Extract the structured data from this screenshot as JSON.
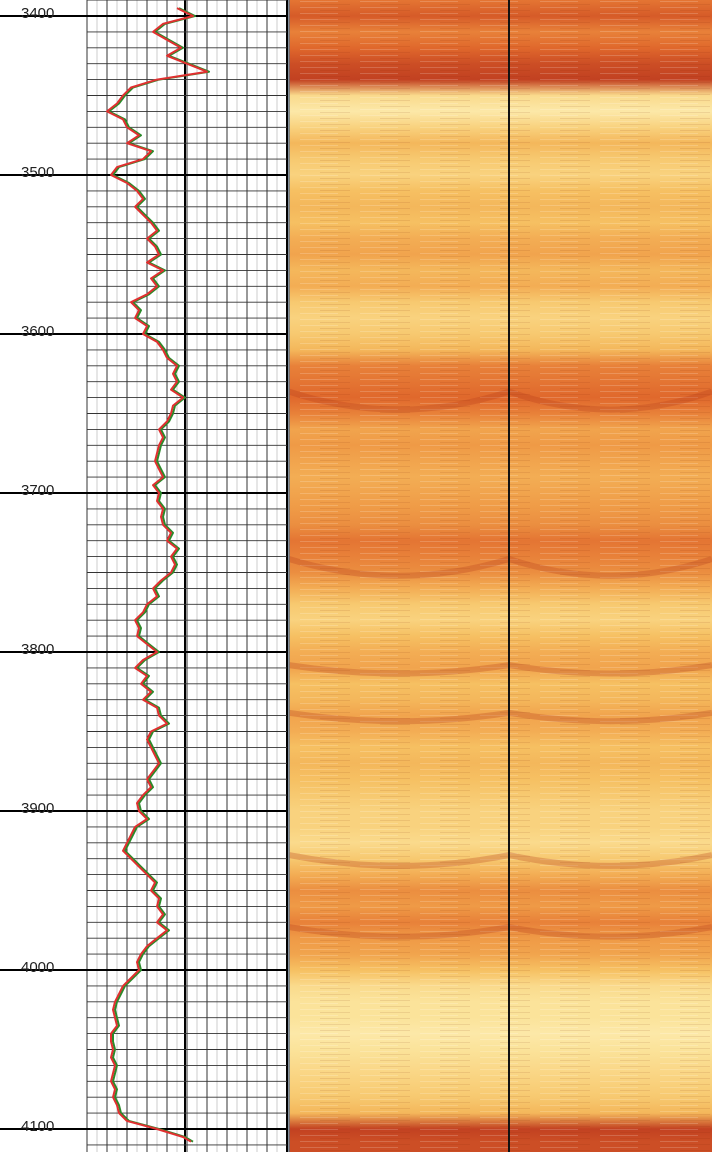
{
  "chart_data": {
    "type": "line",
    "title": "",
    "xlabel": "",
    "ylabel": "",
    "depth_range": [
      3390,
      4108
    ],
    "depth_ticks": [
      "3400",
      "3500",
      "3600",
      "3700",
      "3800",
      "3900",
      "4000",
      "4100"
    ],
    "grid": true,
    "series": [
      {
        "color": "#e03030",
        "depth": [
          3395,
          3400,
          3405,
          3410,
          3415,
          3420,
          3425,
          3430,
          3435,
          3440,
          3445,
          3450,
          3455,
          3460,
          3465,
          3470,
          3475,
          3480,
          3485,
          3490,
          3495,
          3500,
          3505,
          3510,
          3515,
          3520,
          3525,
          3530,
          3535,
          3540,
          3545,
          3550,
          3555,
          3560,
          3565,
          3570,
          3575,
          3580,
          3585,
          3590,
          3595,
          3600,
          3605,
          3610,
          3615,
          3620,
          3625,
          3630,
          3635,
          3640,
          3645,
          3650,
          3655,
          3660,
          3665,
          3670,
          3675,
          3680,
          3685,
          3690,
          3695,
          3700,
          3705,
          3710,
          3715,
          3720,
          3725,
          3730,
          3735,
          3740,
          3745,
          3750,
          3755,
          3760,
          3765,
          3770,
          3775,
          3780,
          3785,
          3790,
          3795,
          3800,
          3805,
          3810,
          3815,
          3820,
          3825,
          3830,
          3835,
          3840,
          3845,
          3850,
          3855,
          3860,
          3865,
          3870,
          3875,
          3880,
          3885,
          3890,
          3895,
          3900,
          3905,
          3910,
          3915,
          3920,
          3925,
          3930,
          3935,
          3940,
          3945,
          3950,
          3955,
          3960,
          3965,
          3970,
          3975,
          3980,
          3985,
          3990,
          3995,
          4000,
          4005,
          4010,
          4015,
          4020,
          4025,
          4030,
          4035,
          4040,
          4045,
          4050,
          4055,
          4060,
          4065,
          4070,
          4075,
          4080,
          4085,
          4090,
          4095,
          4100,
          4105,
          4108
        ],
        "value": [
          0.45,
          0.53,
          0.38,
          0.33,
          0.4,
          0.47,
          0.4,
          0.5,
          0.6,
          0.35,
          0.22,
          0.18,
          0.15,
          0.1,
          0.18,
          0.2,
          0.26,
          0.2,
          0.32,
          0.28,
          0.15,
          0.12,
          0.2,
          0.25,
          0.28,
          0.24,
          0.28,
          0.32,
          0.35,
          0.3,
          0.34,
          0.36,
          0.3,
          0.38,
          0.32,
          0.35,
          0.3,
          0.22,
          0.26,
          0.24,
          0.3,
          0.28,
          0.35,
          0.38,
          0.4,
          0.45,
          0.43,
          0.45,
          0.42,
          0.48,
          0.43,
          0.42,
          0.4,
          0.36,
          0.38,
          0.36,
          0.35,
          0.34,
          0.36,
          0.38,
          0.33,
          0.36,
          0.35,
          0.38,
          0.37,
          0.38,
          0.42,
          0.4,
          0.45,
          0.42,
          0.44,
          0.42,
          0.37,
          0.33,
          0.35,
          0.3,
          0.28,
          0.24,
          0.26,
          0.25,
          0.3,
          0.35,
          0.28,
          0.24,
          0.3,
          0.27,
          0.32,
          0.28,
          0.35,
          0.36,
          0.4,
          0.32,
          0.3,
          0.32,
          0.34,
          0.36,
          0.33,
          0.3,
          0.32,
          0.28,
          0.25,
          0.26,
          0.3,
          0.24,
          0.22,
          0.2,
          0.18,
          0.22,
          0.26,
          0.3,
          0.34,
          0.32,
          0.36,
          0.35,
          0.38,
          0.35,
          0.4,
          0.35,
          0.3,
          0.27,
          0.25,
          0.26,
          0.22,
          0.18,
          0.16,
          0.14,
          0.13,
          0.14,
          0.15,
          0.12,
          0.12,
          0.13,
          0.12,
          0.14,
          0.13,
          0.12,
          0.14,
          0.13,
          0.15,
          0.16,
          0.2,
          0.35,
          0.48,
          0.52
        ]
      },
      {
        "color": "#2a8a2a",
        "depth": [
          3395,
          3400,
          3405,
          3410,
          3415,
          3420,
          3425,
          3430,
          3435,
          3440,
          3445,
          3450,
          3455,
          3460,
          3465,
          3470,
          3475,
          3480,
          3485,
          3490,
          3495,
          3500,
          3505,
          3510,
          3515,
          3520,
          3525,
          3530,
          3535,
          3540,
          3545,
          3550,
          3555,
          3560,
          3565,
          3570,
          3575,
          3580,
          3585,
          3590,
          3595,
          3600,
          3605,
          3610,
          3615,
          3620,
          3625,
          3630,
          3635,
          3640,
          3645,
          3650,
          3655,
          3660,
          3665,
          3670,
          3675,
          3680,
          3685,
          3690,
          3695,
          3700,
          3705,
          3710,
          3715,
          3720,
          3725,
          3730,
          3735,
          3740,
          3745,
          3750,
          3755,
          3760,
          3765,
          3770,
          3775,
          3780,
          3785,
          3790,
          3795,
          3800,
          3805,
          3810,
          3815,
          3820,
          3825,
          3830,
          3835,
          3840,
          3845,
          3850,
          3855,
          3860,
          3865,
          3870,
          3875,
          3880,
          3885,
          3890,
          3895,
          3900,
          3905,
          3910,
          3915,
          3920,
          3925,
          3930,
          3935,
          3940,
          3945,
          3950,
          3955,
          3960,
          3965,
          3970,
          3975,
          3980,
          3985,
          3990,
          3995,
          4000,
          4005,
          4010,
          4015,
          4020,
          4025,
          4030,
          4035,
          4040,
          4045,
          4050,
          4055,
          4060,
          4065,
          4070,
          4075,
          4080,
          4085,
          4090,
          4095,
          4100,
          4105,
          4108
        ],
        "value": [
          0.46,
          0.54,
          0.39,
          0.34,
          0.41,
          0.48,
          0.41,
          0.51,
          0.61,
          0.36,
          0.23,
          0.19,
          0.16,
          0.11,
          0.19,
          0.21,
          0.27,
          0.21,
          0.33,
          0.29,
          0.16,
          0.13,
          0.21,
          0.26,
          0.29,
          0.25,
          0.29,
          0.33,
          0.36,
          0.31,
          0.35,
          0.37,
          0.31,
          0.39,
          0.33,
          0.36,
          0.31,
          0.23,
          0.27,
          0.25,
          0.31,
          0.29,
          0.36,
          0.39,
          0.41,
          0.46,
          0.44,
          0.46,
          0.43,
          0.49,
          0.44,
          0.43,
          0.41,
          0.37,
          0.39,
          0.37,
          0.36,
          0.35,
          0.37,
          0.39,
          0.34,
          0.37,
          0.36,
          0.39,
          0.38,
          0.39,
          0.43,
          0.41,
          0.46,
          0.43,
          0.45,
          0.43,
          0.38,
          0.34,
          0.36,
          0.31,
          0.29,
          0.25,
          0.27,
          0.26,
          0.31,
          0.36,
          0.29,
          0.25,
          0.31,
          0.28,
          0.33,
          0.29,
          0.36,
          0.37,
          0.41,
          0.33,
          0.31,
          0.33,
          0.35,
          0.37,
          0.34,
          0.31,
          0.33,
          0.29,
          0.26,
          0.27,
          0.31,
          0.25,
          0.23,
          0.21,
          0.19,
          0.23,
          0.27,
          0.31,
          0.35,
          0.33,
          0.37,
          0.36,
          0.39,
          0.36,
          0.41,
          0.36,
          0.31,
          0.28,
          0.26,
          0.27,
          0.23,
          0.19,
          0.17,
          0.15,
          0.14,
          0.15,
          0.16,
          0.13,
          0.13,
          0.14,
          0.13,
          0.15,
          0.14,
          0.13,
          0.15,
          0.14,
          0.16,
          0.17,
          0.21,
          0.36,
          0.49,
          0.53
        ]
      }
    ],
    "image_track": {
      "type": "heatmap",
      "colors": [
        "#fef7d0",
        "#fbe39a",
        "#f6c062",
        "#ef9a46",
        "#e0682c",
        "#b8341d"
      ],
      "intensity_depths": [
        3390,
        3400,
        3410,
        3420,
        3430,
        3440,
        3450,
        3460,
        3470,
        3480,
        3490,
        3500,
        3510,
        3520,
        3530,
        3540,
        3550,
        3560,
        3570,
        3580,
        3590,
        3600,
        3610,
        3620,
        3630,
        3640,
        3650,
        3660,
        3670,
        3680,
        3690,
        3700,
        3710,
        3720,
        3730,
        3740,
        3750,
        3760,
        3770,
        3780,
        3790,
        3800,
        3810,
        3820,
        3830,
        3840,
        3850,
        3860,
        3870,
        3880,
        3890,
        3900,
        3910,
        3920,
        3930,
        3940,
        3950,
        3960,
        3970,
        3980,
        3990,
        4000,
        4010,
        4020,
        4030,
        4040,
        4050,
        4060,
        4070,
        4080,
        4090,
        4100,
        4108
      ],
      "intensity": [
        0.75,
        0.85,
        0.7,
        0.8,
        0.9,
        0.95,
        0.25,
        0.15,
        0.3,
        0.45,
        0.35,
        0.3,
        0.4,
        0.45,
        0.4,
        0.5,
        0.55,
        0.45,
        0.5,
        0.35,
        0.3,
        0.35,
        0.45,
        0.7,
        0.75,
        0.8,
        0.7,
        0.55,
        0.6,
        0.55,
        0.5,
        0.55,
        0.6,
        0.65,
        0.75,
        0.7,
        0.65,
        0.5,
        0.35,
        0.3,
        0.4,
        0.5,
        0.55,
        0.4,
        0.45,
        0.55,
        0.5,
        0.4,
        0.45,
        0.4,
        0.35,
        0.3,
        0.3,
        0.25,
        0.35,
        0.5,
        0.65,
        0.6,
        0.7,
        0.6,
        0.55,
        0.4,
        0.25,
        0.2,
        0.2,
        0.15,
        0.2,
        0.25,
        0.3,
        0.35,
        0.45,
        0.95,
        0.9
      ]
    }
  }
}
